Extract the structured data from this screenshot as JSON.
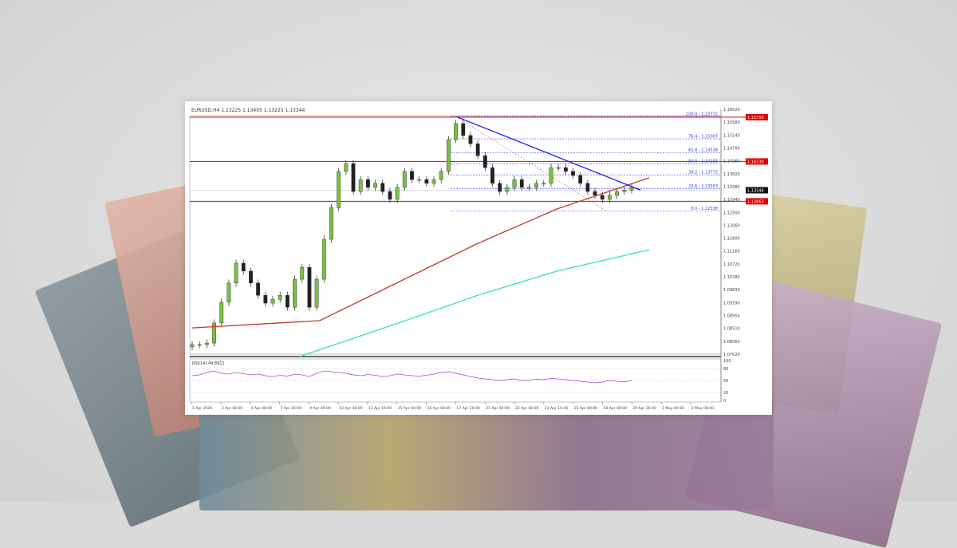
{
  "header": {
    "symbol_line": "EURUSD,H4  1.13225 1.13405 1.13225 1.13344"
  },
  "chart_data": {
    "type": "candlestick",
    "title": "EURUSD,H4",
    "ylim": [
      1.0762,
      1.1602
    ],
    "y_ticks": [
      "1.16020",
      "1.15580",
      "1.15140",
      "1.14700",
      "1.14260",
      "1.13820",
      "1.13380",
      "1.12940",
      "1.12500",
      "1.12060",
      "1.11600",
      "1.11160",
      "1.10720",
      "1.10280",
      "1.09830",
      "1.09390",
      "1.08950",
      "1.08510",
      "1.08060",
      "1.07620"
    ],
    "x_ticks": [
      "1 Apr 2026",
      "3 Apr 00:00",
      "4 Apr 08:00",
      "7 Apr 16:00",
      "9 Apr 00:00",
      "10 Apr 08:00",
      "11 Apr 16:00",
      "15 Apr 00:00",
      "16 Apr 08:00",
      "17 Apr 16:00",
      "21 Apr 00:00",
      "22 Apr 08:00",
      "23 Apr 16:00",
      "25 Apr 00:00",
      "28 Apr 08:00",
      "29 Apr 16:00",
      "1 May 00:00",
      "2 May 08:00"
    ],
    "closes": [
      1.0795,
      1.0795,
      1.08,
      1.0869,
      1.094,
      1.1006,
      1.1074,
      1.1047,
      1.1006,
      1.0964,
      1.0937,
      1.095,
      1.0964,
      1.0923,
      1.1019,
      1.106,
      1.0923,
      1.1019,
      1.1156,
      1.1265,
      1.1389,
      1.1416,
      1.132,
      1.1361,
      1.1334,
      1.1348,
      1.132,
      1.1293,
      1.1334,
      1.1389,
      1.1361,
      1.1361,
      1.1348,
      1.1361,
      1.1389,
      1.1498,
      1.1553,
      1.1512,
      1.1484,
      1.1443,
      1.1402,
      1.1348,
      1.132,
      1.1334,
      1.1361,
      1.1334,
      1.1334,
      1.1348,
      1.1348,
      1.1402,
      1.1402,
      1.1389,
      1.1375,
      1.1348,
      1.132,
      1.1307,
      1.1293,
      1.1307,
      1.132,
      1.1325,
      1.1334
    ],
    "moving_averages": [
      {
        "color": "#c0392b",
        "values": [
          1.0852,
          1.0877,
          1.1142,
          1.126,
          1.1367
        ],
        "at": [
          0,
          0.29,
          0.65,
          0.83,
          1.04
        ]
      },
      {
        "color": "#2ee8b0",
        "values": [
          1.0754,
          1.0869,
          1.0964,
          1.1047,
          1.112
        ],
        "at": [
          0.245,
          0.47,
          0.65,
          0.83,
          1.04
        ]
      }
    ],
    "horizontal_levels": [
      {
        "value": 1.1575,
        "label": "1.15750",
        "color": "#e00000"
      },
      {
        "value": 1.1423,
        "label": "1.14230",
        "color": "#e00000"
      },
      {
        "value": 1.12863,
        "label": "1.12863",
        "color": "#e00000"
      }
    ],
    "current_price": {
      "value": 1.13244,
      "label": "1.13244"
    },
    "fibonacci": [
      {
        "label": "100.0 - 1.15772",
        "value": 1.15772
      },
      {
        "label": "76.4 - 1.15007",
        "value": 1.15007
      },
      {
        "label": "61.8 - 1.14538",
        "value": 1.14538
      },
      {
        "label": "50.0 - 1.14155",
        "value": 1.14155
      },
      {
        "label": "38.2 - 1.13772",
        "value": 1.13772
      },
      {
        "label": "23.6 - 1.13303",
        "value": 1.13303
      },
      {
        "label": "0.0 - 1.12538",
        "value": 1.12538
      }
    ],
    "trendline": {
      "color": "#1a1aff",
      "from": 1.15772,
      "to": 1.1325
    },
    "rsi": {
      "label": "RSI(14) 49.8911",
      "ticks": [
        "100",
        "80",
        "50",
        "20",
        "0"
      ],
      "values": [
        62,
        64,
        70,
        74,
        68,
        66,
        70,
        67,
        64,
        66,
        62,
        60,
        63,
        61,
        66,
        64,
        60,
        68,
        74,
        72,
        70,
        68,
        64,
        62,
        65,
        63,
        60,
        62,
        66,
        64,
        62,
        61,
        63,
        66,
        70,
        72,
        68,
        64,
        60,
        56,
        54,
        52,
        50,
        52,
        54,
        50,
        51,
        53,
        52,
        55,
        54,
        52,
        50,
        48,
        46,
        44,
        46,
        50,
        48,
        47,
        50
      ]
    },
    "colors": {
      "bull": "#7ac142",
      "bear": "#222222",
      "fib": "#3333ff"
    }
  }
}
